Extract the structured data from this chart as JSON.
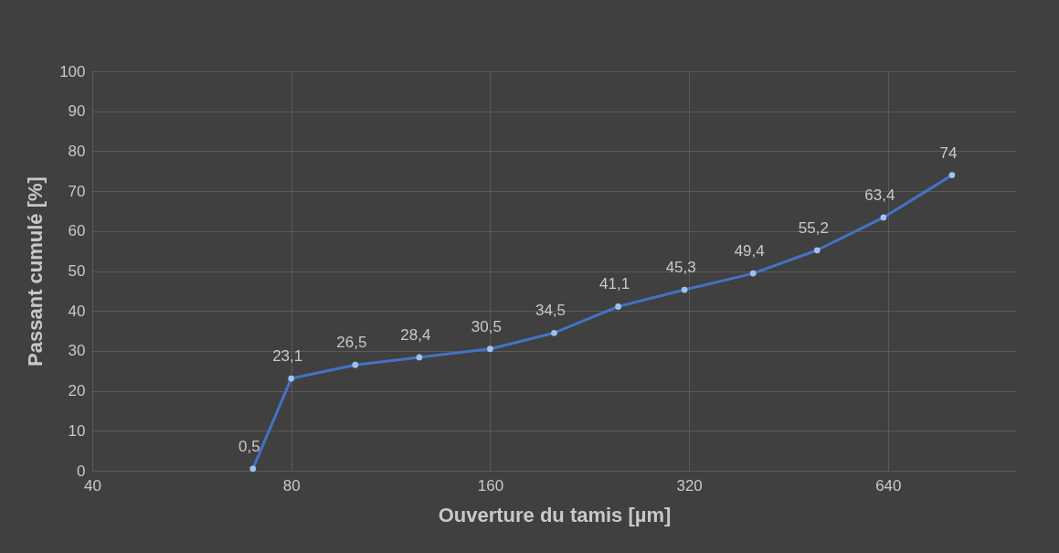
{
  "chart_data": {
    "type": "line",
    "xlabel": "Ouverture du tamis [µm]",
    "ylabel": "Passant cumulé [%]",
    "x": [
      70,
      80,
      100,
      125,
      160,
      200,
      250,
      315,
      400,
      500,
      630,
      800
    ],
    "series": [
      {
        "color": "#4472c4",
        "values": [
          0.5,
          23.1,
          26.5,
          28.4,
          30.5,
          34.5,
          41.1,
          45.3,
          49.4,
          55.2,
          63.4,
          74
        ],
        "value_labels": [
          "0,5",
          "23,1",
          "26,5",
          "28,4",
          "30,5",
          "34,5",
          "41,1",
          "45,3",
          "49,4",
          "55,2",
          "63,4",
          "74"
        ]
      }
    ],
    "log": "x",
    "xlim": [
      40,
      1000
    ],
    "xticks": [
      40,
      80,
      160,
      320,
      640
    ],
    "ylim": [
      0,
      100
    ],
    "yticks": [
      0,
      10,
      20,
      30,
      40,
      50,
      60,
      70,
      80,
      90,
      100
    ],
    "grid": true,
    "marker": "circle",
    "line_style": "solid"
  }
}
